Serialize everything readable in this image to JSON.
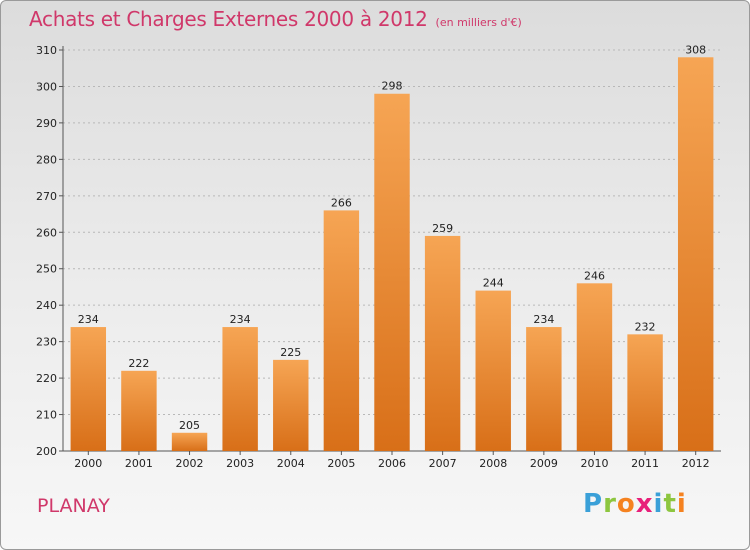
{
  "header": {
    "title": "Achats et Charges Externes 2000 à 2012",
    "subtitle": "(en milliers d'€)"
  },
  "footer": {
    "place": "PLANAY",
    "logo_letters": [
      {
        "ch": "P",
        "color": "#3aa0d8"
      },
      {
        "ch": "r",
        "color": "#8dc63f"
      },
      {
        "ch": "o",
        "color": "#f58220"
      },
      {
        "ch": "x",
        "color": "#e8207a"
      },
      {
        "ch": "i",
        "color": "#3aa0d8"
      },
      {
        "ch": "t",
        "color": "#8dc63f"
      },
      {
        "ch": "i",
        "color": "#f58220"
      }
    ]
  },
  "colors": {
    "title": "#d0386a",
    "bar_top": "#f6a554",
    "bar_bottom": "#d86f18",
    "grid": "#b8b8b8"
  },
  "chart_data": {
    "type": "bar",
    "title": "Achats et Charges Externes 2000 à 2012",
    "subtitle": "(en milliers d'€)",
    "xlabel": "",
    "ylabel": "",
    "categories": [
      "2000",
      "2001",
      "2002",
      "2003",
      "2004",
      "2005",
      "2006",
      "2007",
      "2008",
      "2009",
      "2010",
      "2011",
      "2012"
    ],
    "values": [
      234,
      222,
      205,
      234,
      225,
      266,
      298,
      259,
      244,
      234,
      246,
      232,
      308
    ],
    "ylim": [
      200,
      310
    ],
    "yticks": [
      200,
      210,
      220,
      230,
      240,
      250,
      260,
      270,
      280,
      290,
      300,
      310
    ],
    "grid": true,
    "data_labels": true
  }
}
